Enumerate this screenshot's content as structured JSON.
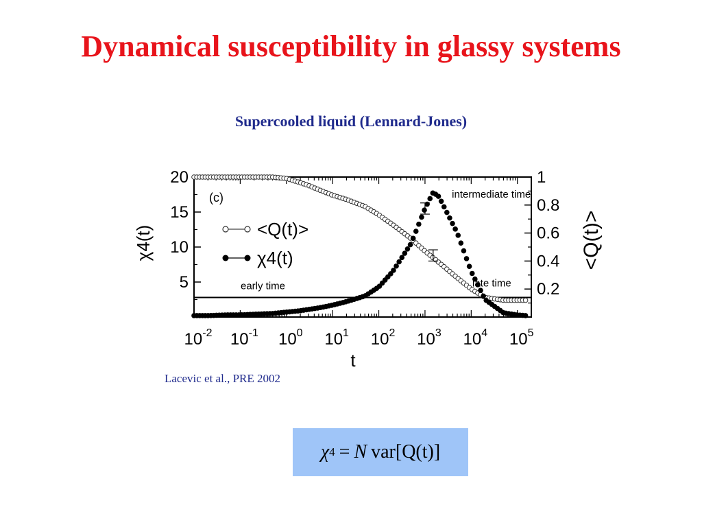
{
  "slide": {
    "title": "Dynamical susceptibility in glassy systems",
    "subtitle": "Supercooled liquid (Lennard-Jones)",
    "citation": "Lacevic et al., PRE 2002",
    "formula": {
      "lhs_symbol": "χ",
      "lhs_sub": "4",
      "equals": "=",
      "N": "N",
      "rhs": "var[Q(t)]"
    }
  },
  "chart_data": {
    "type": "scatter",
    "panel_label": "(c)",
    "xlabel": "t",
    "ylabel_left": "χ4(t)",
    "ylabel_right": "<Q(t)>",
    "x_scale": "log",
    "xlim": [
      0.01,
      200000
    ],
    "ylim_left": [
      0,
      20
    ],
    "ylim_right": [
      0,
      1
    ],
    "x_ticks": [
      {
        "base": "10",
        "exp": "-2"
      },
      {
        "base": "10",
        "exp": "-1"
      },
      {
        "base": "10",
        "exp": "0"
      },
      {
        "base": "10",
        "exp": "1"
      },
      {
        "base": "10",
        "exp": "2"
      },
      {
        "base": "10",
        "exp": "3"
      },
      {
        "base": "10",
        "exp": "4"
      },
      {
        "base": "10",
        "exp": "5"
      }
    ],
    "y_ticks_left": [
      "20",
      "15",
      "10",
      "5"
    ],
    "y_ticks_right": [
      "1",
      "0.8",
      "0.6",
      "0.4",
      "0.2"
    ],
    "annotations": {
      "intermediate": "intermediate time",
      "early": "early time",
      "late": "late time"
    },
    "reference_line_q": 0.14,
    "legend": [
      {
        "label": "<Q(t)>",
        "marker": "open-circle"
      },
      {
        "label": "χ4(t)",
        "marker": "filled-circle"
      }
    ],
    "series": [
      {
        "name": "<Q(t)>",
        "axis": "right",
        "marker": "open",
        "points": [
          [
            0.01,
            1.0
          ],
          [
            0.02,
            1.0
          ],
          [
            0.05,
            1.0
          ],
          [
            0.1,
            1.0
          ],
          [
            0.2,
            1.0
          ],
          [
            0.5,
            1.0
          ],
          [
            1,
            0.99
          ],
          [
            2,
            0.96
          ],
          [
            3,
            0.94
          ],
          [
            5,
            0.91
          ],
          [
            10,
            0.87
          ],
          [
            20,
            0.84
          ],
          [
            50,
            0.79
          ],
          [
            100,
            0.73
          ],
          [
            200,
            0.66
          ],
          [
            500,
            0.56
          ],
          [
            1000,
            0.47
          ],
          [
            2000,
            0.39
          ],
          [
            5000,
            0.28
          ],
          [
            10000,
            0.2
          ],
          [
            20000,
            0.14
          ],
          [
            50000,
            0.12
          ],
          [
            100000,
            0.12
          ],
          [
            150000,
            0.12
          ]
        ]
      },
      {
        "name": "χ4(t)",
        "axis": "left",
        "marker": "filled",
        "points": [
          [
            0.01,
            0.2
          ],
          [
            0.02,
            0.2
          ],
          [
            0.05,
            0.3
          ],
          [
            0.1,
            0.3
          ],
          [
            0.2,
            0.4
          ],
          [
            0.5,
            0.5
          ],
          [
            1,
            0.7
          ],
          [
            2,
            0.9
          ],
          [
            5,
            1.3
          ],
          [
            10,
            1.7
          ],
          [
            20,
            2.2
          ],
          [
            50,
            3.0
          ],
          [
            100,
            4.3
          ],
          [
            200,
            6.5
          ],
          [
            500,
            10.5
          ],
          [
            1000,
            15.5
          ],
          [
            1500,
            17.8
          ],
          [
            2000,
            17.2
          ],
          [
            5000,
            12.0
          ],
          [
            10000,
            6.5
          ],
          [
            20000,
            2.5
          ],
          [
            50000,
            0.6
          ],
          [
            100000,
            0.3
          ],
          [
            150000,
            0.2
          ]
        ]
      }
    ],
    "error_bars": [
      {
        "series": "<Q(t)>",
        "x": 1500,
        "y": 0.44,
        "err": 0.04
      },
      {
        "series": "χ4(t)",
        "x": 1000,
        "y": 15.5,
        "err": 0.8
      }
    ]
  }
}
